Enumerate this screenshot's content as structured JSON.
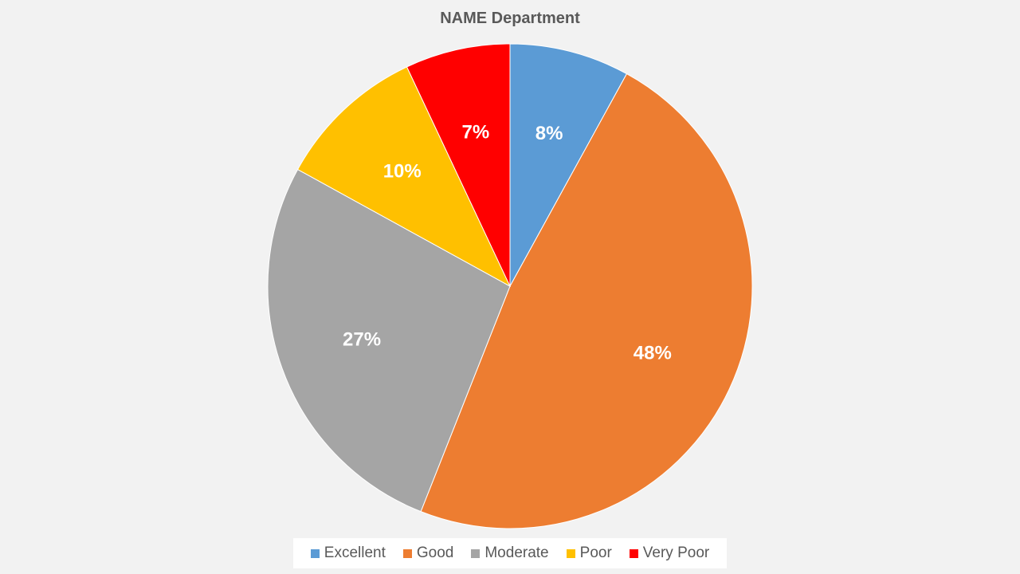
{
  "chart_data": {
    "type": "pie",
    "title": "NAME Department",
    "categories": [
      "Excellent",
      "Good",
      "Moderate",
      "Poor",
      "Very Poor"
    ],
    "values": [
      8,
      48,
      27,
      10,
      7
    ],
    "labels": [
      "8%",
      "48%",
      "27%",
      "10%",
      "7%"
    ],
    "colors": [
      "#5b9bd5",
      "#ed7d31",
      "#a5a5a5",
      "#ffc000",
      "#ff0000"
    ],
    "legend": "bottom",
    "start_angle_deg": 0,
    "direction": "clockwise"
  }
}
